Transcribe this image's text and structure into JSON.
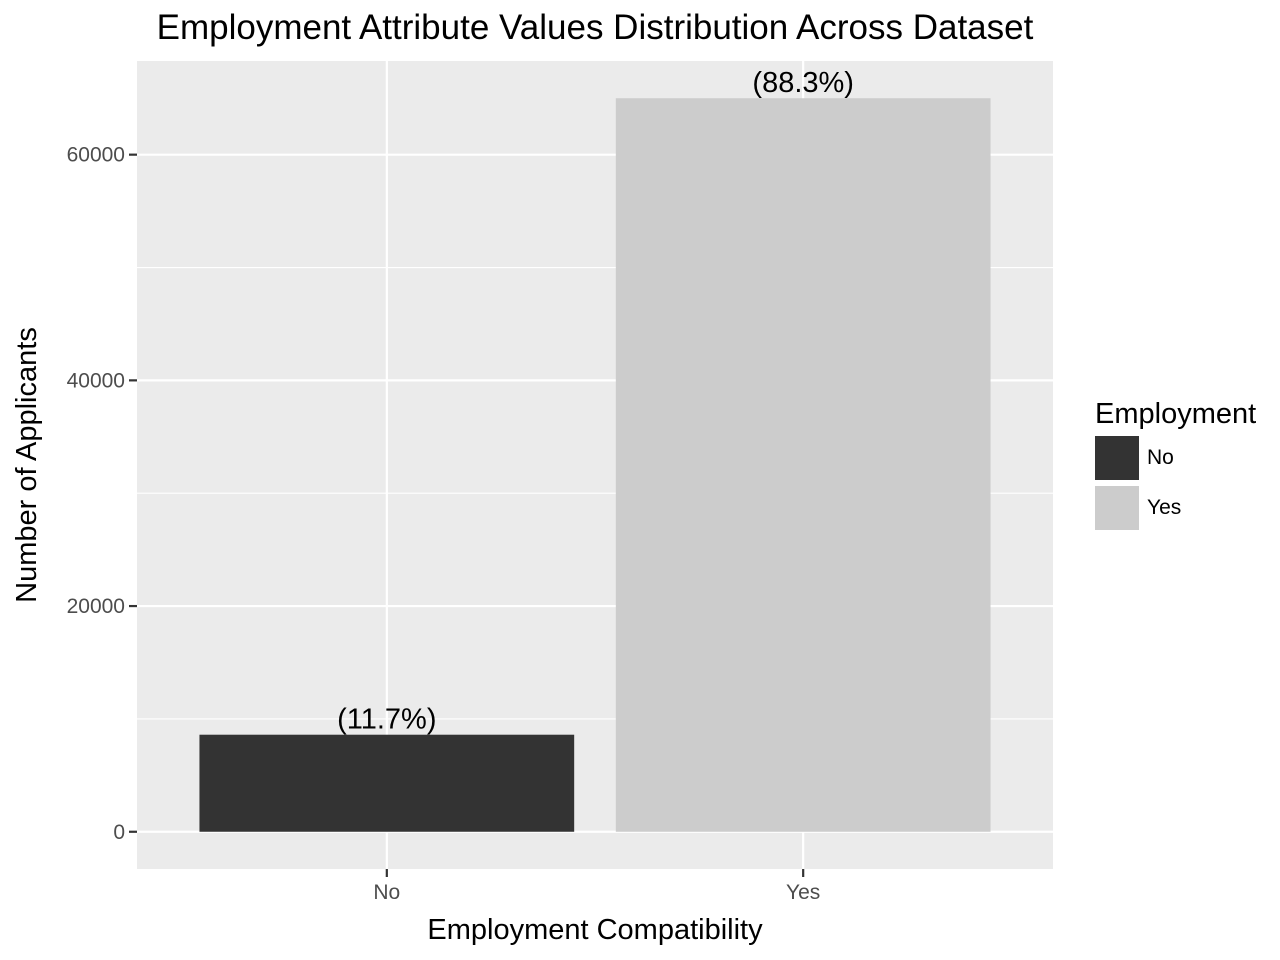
{
  "chart_data": {
    "type": "bar",
    "title": "Employment Attribute Values Distribution Across Dataset",
    "xlabel": "Employment Compatibility",
    "ylabel": "Number of Applicants",
    "categories": [
      "No",
      "Yes"
    ],
    "values": [
      8600,
      65000
    ],
    "data_labels": [
      "(11.7%)",
      "(88.3%)"
    ],
    "ylim": [
      -3300,
      68300
    ],
    "y_ticks": [
      0,
      20000,
      40000,
      60000
    ],
    "y_tick_labels": [
      "0",
      "20000",
      "40000",
      "60000"
    ],
    "legend": {
      "title": "Employment",
      "position": "right",
      "entries": [
        {
          "label": "No",
          "color": "#333333"
        },
        {
          "label": "Yes",
          "color": "#cccccc"
        }
      ]
    },
    "colors": {
      "No": "#333333",
      "Yes": "#cccccc"
    },
    "panel_background": "#ebebeb",
    "grid": true
  }
}
